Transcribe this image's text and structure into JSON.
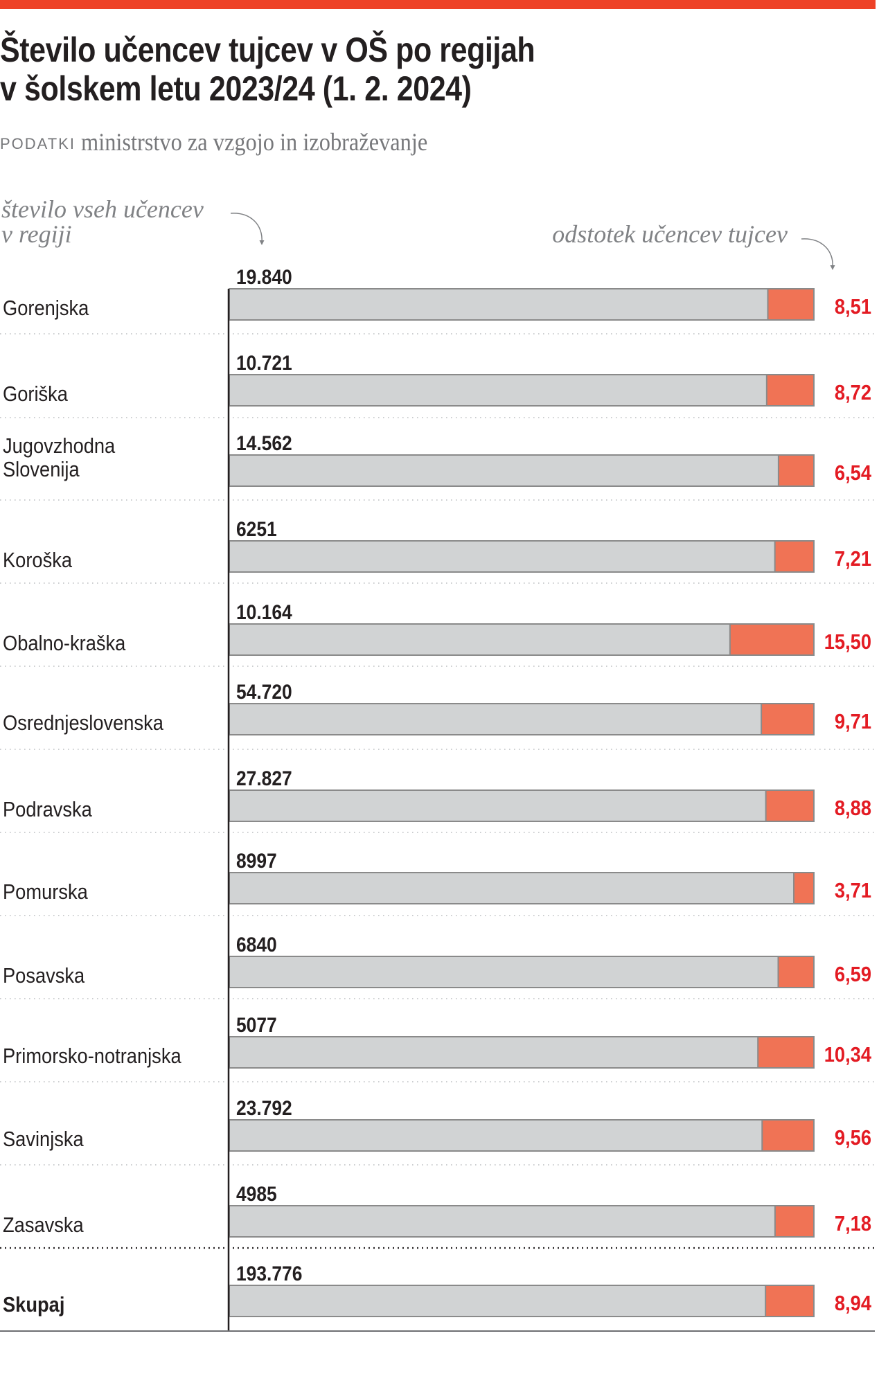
{
  "header": {
    "title_line1": "Število učencev tujcev v OŠ po regijah",
    "title_line2": "v šolskem letu 2023/24 (1. 2. 2024)",
    "source_kicker": "PODATKI",
    "source_text": "ministrstvo za vzgojo in izobraževanje"
  },
  "colors": {
    "accent_bar": "#ee4227",
    "bar_total": "#d1d3d4",
    "bar_foreign": "#f07355",
    "bar_border": "#8a8a8a",
    "pct_label": "#e31b23",
    "annotation": "#808285"
  },
  "chart_data": {
    "type": "bar",
    "orientation": "horizontal",
    "title": "Število učencev tujcev v OŠ po regijah v šolskem letu 2023/24 (1. 2. 2024)",
    "source": "PODATKI ministrstvo za vzgojo in izobraževanje",
    "annotation_left": [
      "število vseh učencev",
      "v regiji"
    ],
    "annotation_right": "odstotek učencev tujcev",
    "categories": [
      "Gorenjska",
      "Goriška",
      "Jugovzhodna Slovenija",
      "Koroška",
      "Obalno-kraška",
      "Osrednjeslovenska",
      "Podravska",
      "Pomurska",
      "Posavska",
      "Primorsko-notranjska",
      "Savinjska",
      "Zasavska",
      "Skupaj"
    ],
    "category_lines": [
      [
        "Gorenjska"
      ],
      [
        "Goriška"
      ],
      [
        "Jugovzhodna",
        "Slovenija"
      ],
      [
        "Koroška"
      ],
      [
        "Obalno-kraška"
      ],
      [
        "Osrednjeslovenska"
      ],
      [
        "Podravska"
      ],
      [
        "Pomurska"
      ],
      [
        "Posavska"
      ],
      [
        "Primorsko-notranjska"
      ],
      [
        "Savinjska"
      ],
      [
        "Zasavska"
      ],
      [
        "Skupaj"
      ]
    ],
    "series": [
      {
        "name": "število vseh učencev v regiji",
        "values": [
          19840,
          10721,
          14562,
          6251,
          10164,
          54720,
          27827,
          8997,
          6840,
          5077,
          23792,
          4985,
          193776
        ],
        "labels": [
          "19.840",
          "10.721",
          "14.562",
          "6251",
          "10.164",
          "54.720",
          "27.827",
          "8997",
          "6840",
          "5077",
          "23.792",
          "4985",
          "193.776"
        ]
      },
      {
        "name": "odstotek učencev tujcev",
        "values": [
          8.51,
          8.72,
          6.54,
          7.21,
          15.5,
          9.71,
          8.88,
          3.71,
          6.59,
          10.34,
          9.56,
          7.18,
          8.94
        ],
        "labels": [
          "8,51",
          "8,72",
          "6,54",
          "7,21",
          "15,50",
          "9,71",
          "8,88",
          "3,71",
          "6,59",
          "10,34",
          "9,56",
          "7,18",
          "8,94"
        ]
      }
    ],
    "total_row_index": 12,
    "xlabel": "",
    "ylabel": "",
    "grid": false,
    "legend": "none"
  }
}
